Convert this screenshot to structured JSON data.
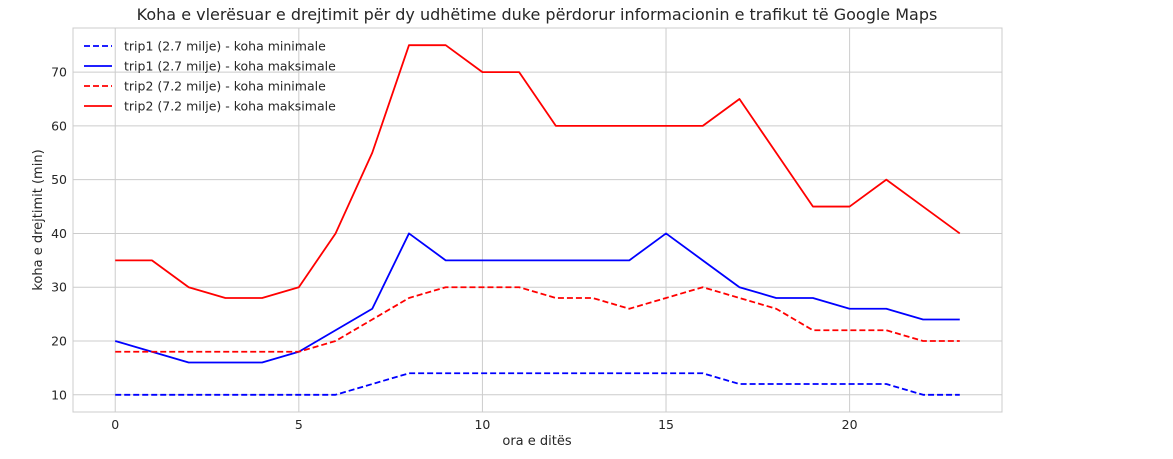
{
  "chart_data": {
    "type": "line",
    "title": "Koha e vlerësuar e drejtimit për dy udhëtime duke përdorur informacionin e trafikut të Google Maps",
    "xlabel": "ora e ditës",
    "ylabel": "koha e drejtimit (min)",
    "xlim": [
      -1.15,
      24.15
    ],
    "ylim": [
      6.8,
      78.2
    ],
    "xticks": [
      0,
      5,
      10,
      15,
      20
    ],
    "yticks": [
      10,
      20,
      30,
      40,
      50,
      60,
      70
    ],
    "grid": true,
    "legend_position": "top-left",
    "x": [
      0,
      1,
      2,
      3,
      4,
      5,
      6,
      7,
      8,
      9,
      10,
      11,
      12,
      13,
      14,
      15,
      16,
      17,
      18,
      19,
      20,
      21,
      22,
      23
    ],
    "series": [
      {
        "name": "trip1 (2.7 milje) - koha minimale",
        "color": "#0000ff",
        "dash": true,
        "values": [
          10,
          10,
          10,
          10,
          10,
          10,
          10,
          12,
          14,
          14,
          14,
          14,
          14,
          14,
          14,
          14,
          14,
          12,
          12,
          12,
          12,
          12,
          10,
          10
        ]
      },
      {
        "name": "trip1 (2.7 milje) - koha maksimale",
        "color": "#0000ff",
        "dash": false,
        "values": [
          20,
          18,
          16,
          16,
          16,
          18,
          22,
          26,
          40,
          35,
          35,
          35,
          35,
          35,
          35,
          40,
          35,
          30,
          28,
          28,
          26,
          26,
          24,
          24
        ]
      },
      {
        "name": "trip2 (7.2 milje) - koha minimale",
        "color": "#ff0000",
        "dash": true,
        "values": [
          18,
          18,
          18,
          18,
          18,
          18,
          20,
          24,
          28,
          30,
          30,
          30,
          28,
          28,
          26,
          28,
          30,
          28,
          26,
          22,
          22,
          22,
          20,
          20
        ]
      },
      {
        "name": "trip2 (7.2 milje) - koha maksimale",
        "color": "#ff0000",
        "dash": false,
        "values": [
          35,
          35,
          30,
          28,
          28,
          30,
          40,
          55,
          75,
          75,
          70,
          70,
          60,
          60,
          60,
          60,
          60,
          65,
          55,
          45,
          45,
          50,
          45,
          40
        ]
      }
    ]
  }
}
